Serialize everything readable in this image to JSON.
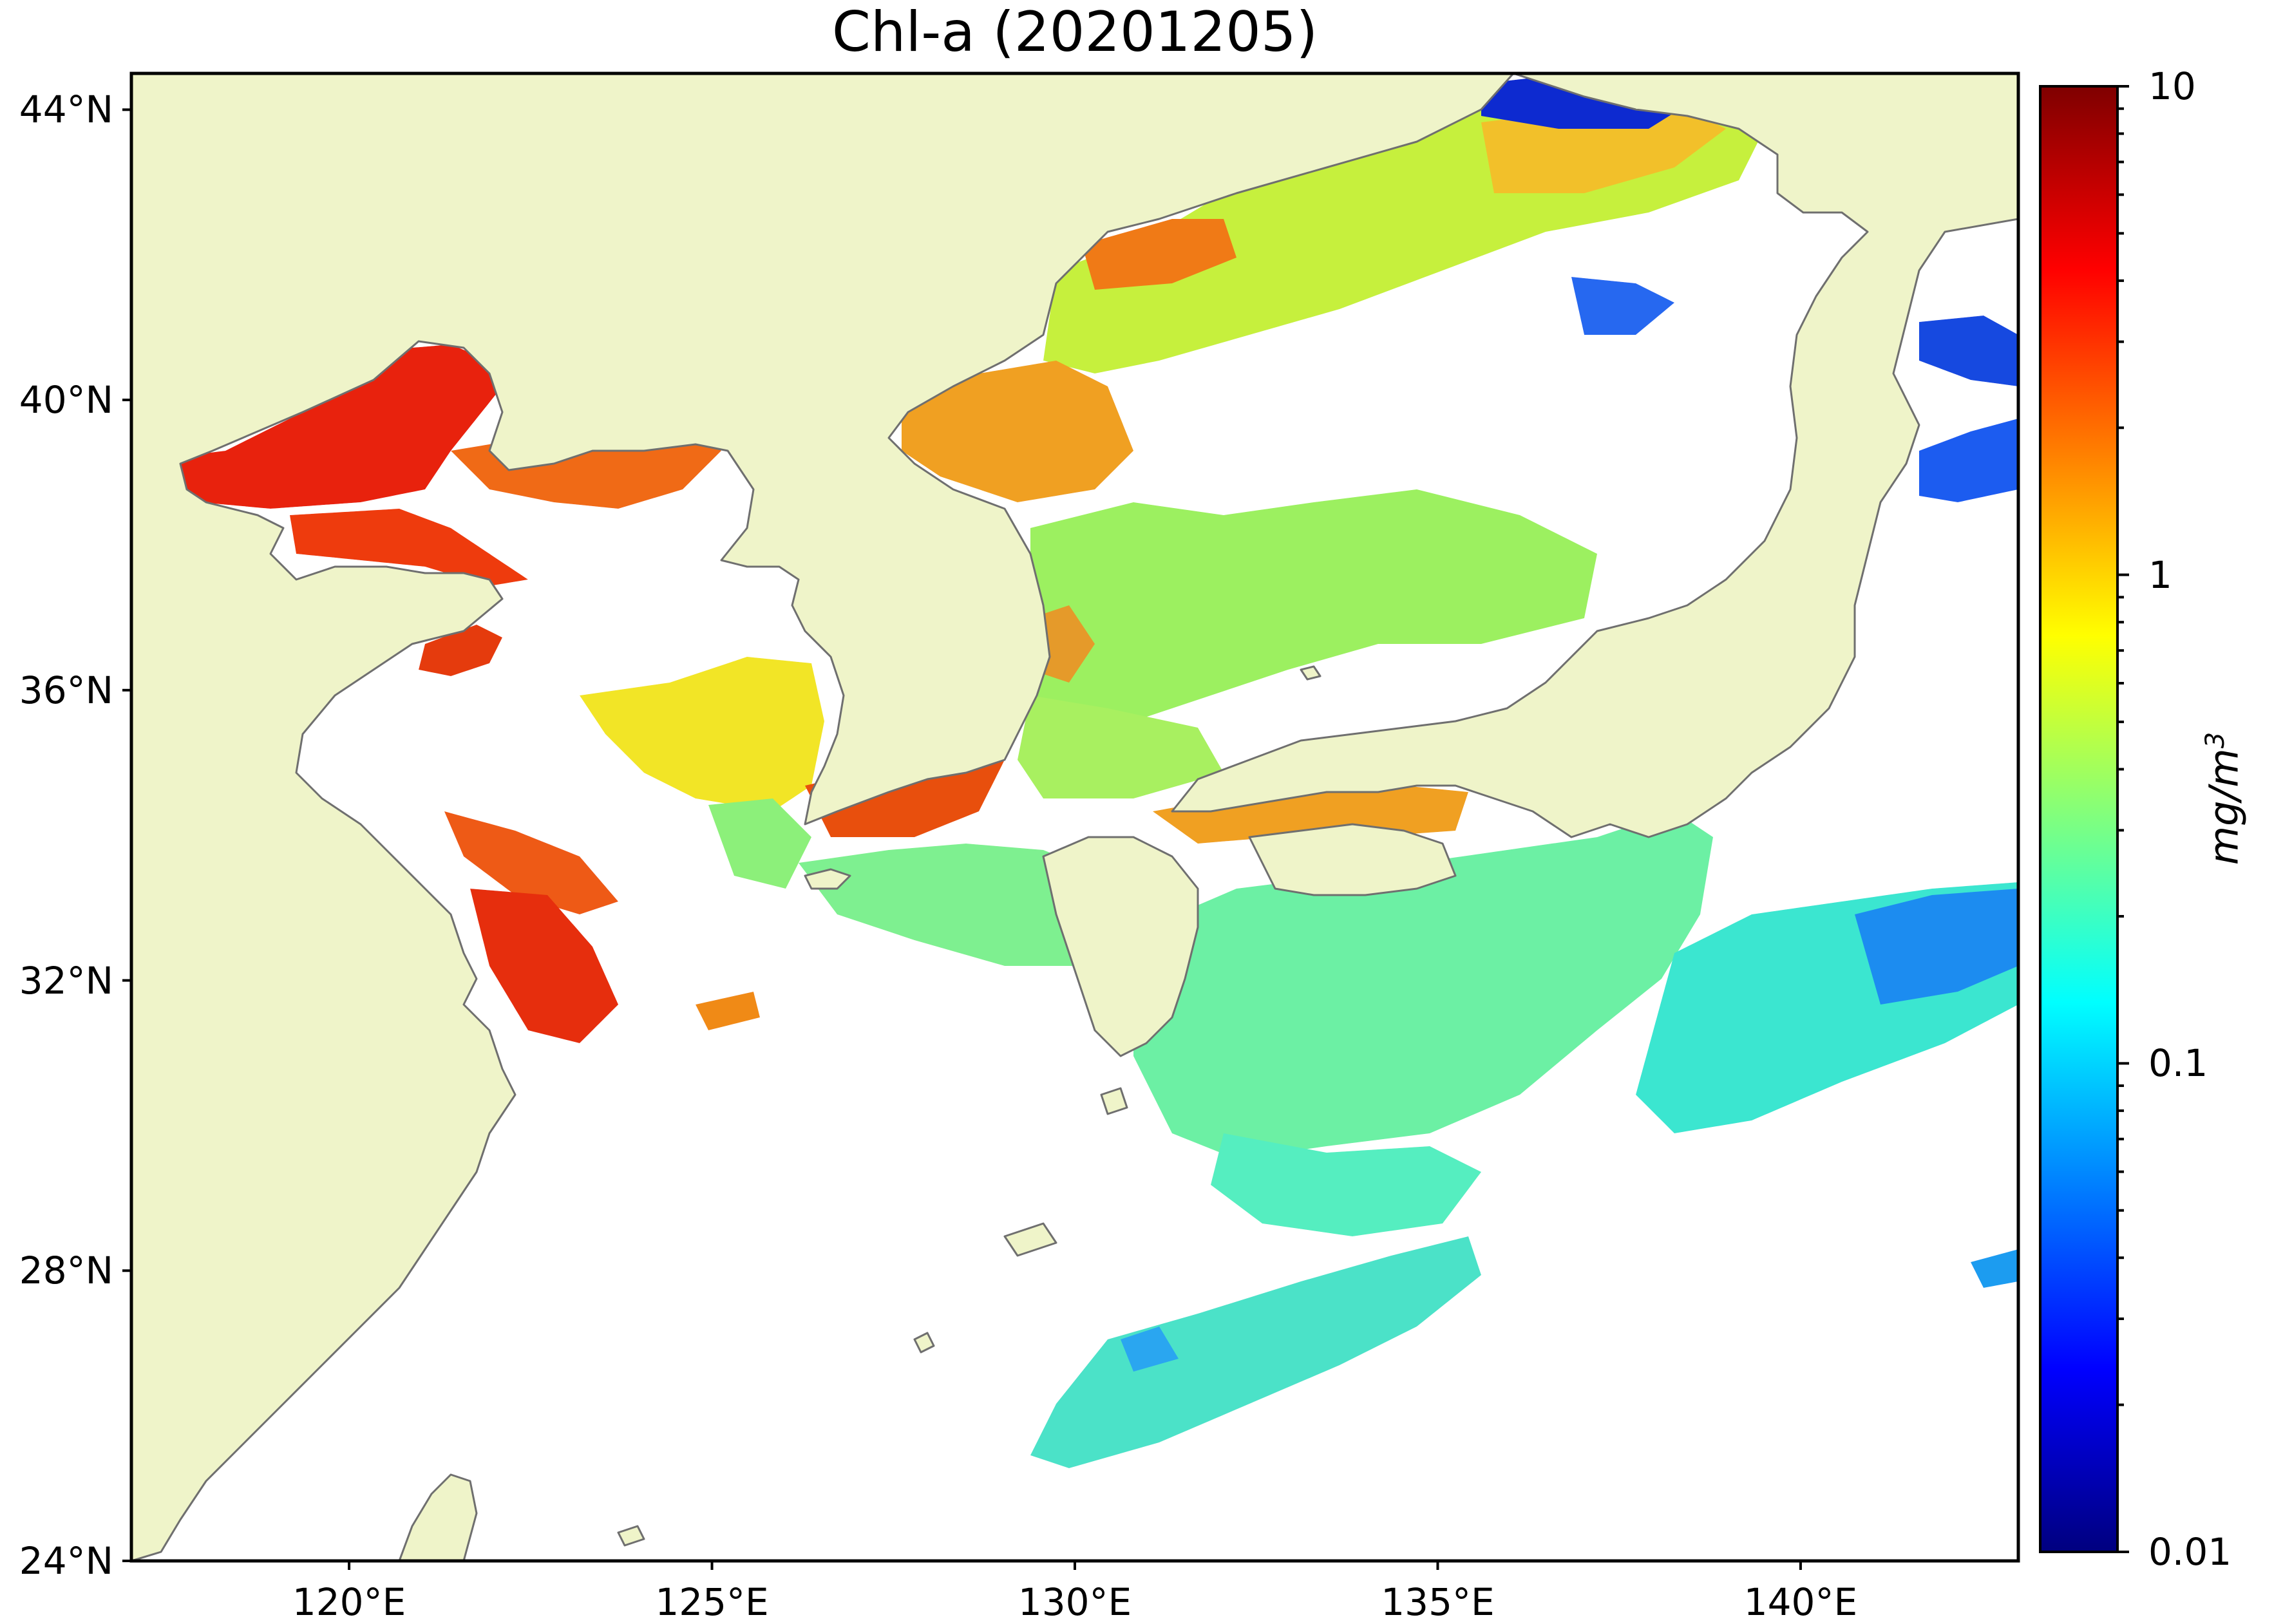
{
  "title": "Chl-a (20201205)",
  "map": {
    "extent": {
      "lon_min": 117,
      "lon_max": 143,
      "lat_min": 24,
      "lat_max": 44.5
    },
    "lat_ticks": [
      44,
      40,
      36,
      32,
      28,
      24
    ],
    "lat_labels": [
      "44°N",
      "40°N",
      "36°N",
      "32°N",
      "28°N",
      "24°N"
    ],
    "lon_ticks": [
      120,
      125,
      130,
      135,
      140
    ],
    "lon_labels": [
      "120°E",
      "125°E",
      "130°E",
      "135°E",
      "140°E"
    ],
    "colors": {
      "land": "#eff4c9",
      "coastline": "#6f6f6f",
      "no_data": "#ffffff"
    }
  },
  "colorbar": {
    "label": "mg/m",
    "label_exp": "3",
    "scale": "log",
    "range": [
      0.01,
      10
    ],
    "ticks": [
      10,
      1,
      0.1,
      0.01
    ],
    "tick_labels": [
      "10",
      "1",
      "0.1",
      "0.01"
    ],
    "colormap": "jet",
    "colors": [
      "#00007f",
      "#0000ff",
      "#007fff",
      "#00ffff",
      "#7fff7f",
      "#ffff00",
      "#ff7f00",
      "#ff0000",
      "#7f0000"
    ]
  }
}
